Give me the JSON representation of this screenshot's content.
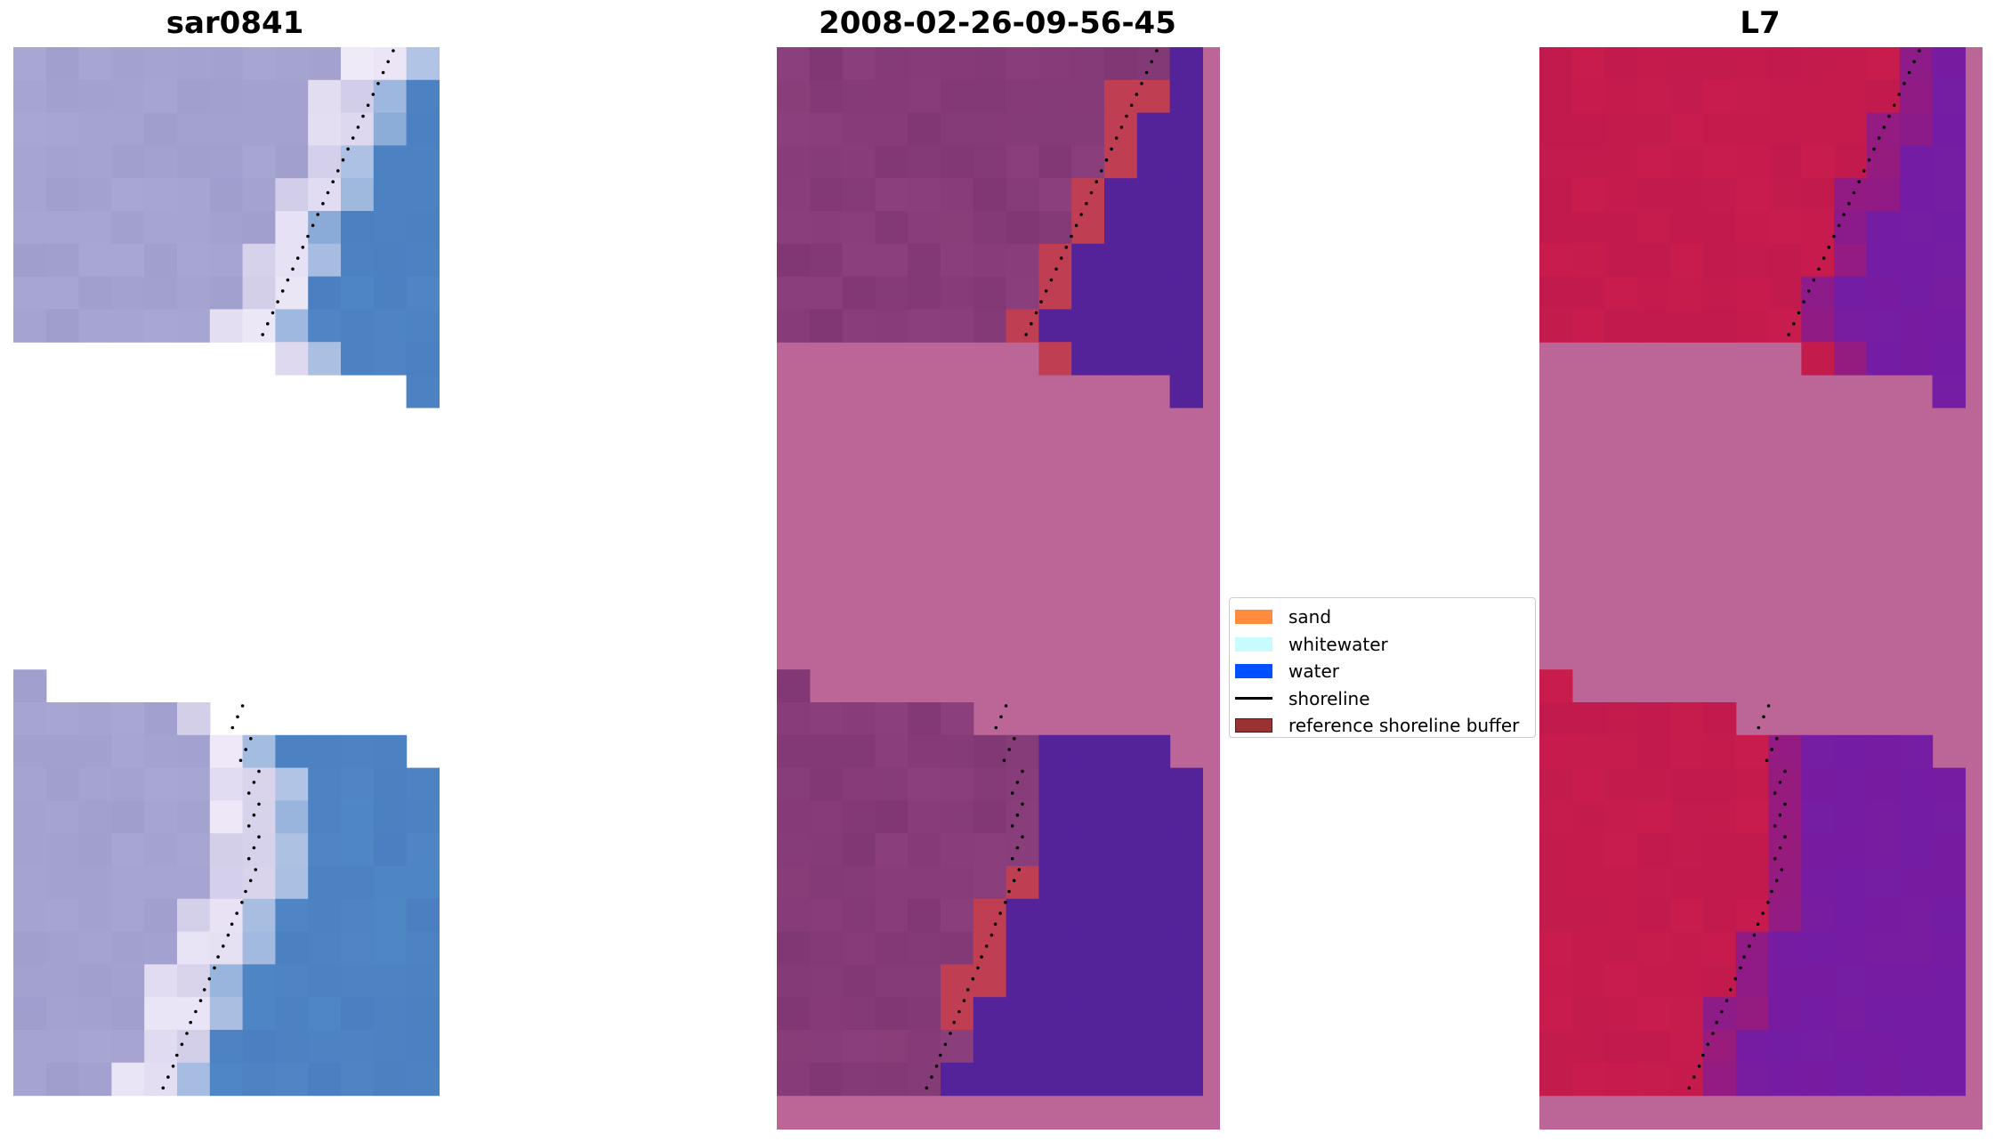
{
  "panels": [
    {
      "title": "sar0841"
    },
    {
      "title": "2008-02-26-09-56-45"
    },
    {
      "title": "L7"
    }
  ],
  "legend": {
    "items": [
      {
        "label": "sand",
        "kind": "patch",
        "color": "#ff8c3c"
      },
      {
        "label": "whitewater",
        "kind": "patch",
        "color": "#c8fbfb"
      },
      {
        "label": "water",
        "kind": "patch",
        "color": "#0050ff"
      },
      {
        "label": "shoreline",
        "kind": "line",
        "color": "#000000"
      },
      {
        "label": "reference shoreline buffer",
        "kind": "patch",
        "color": "#993333"
      }
    ]
  },
  "colors": {
    "rgb_land": "#a8a6d2",
    "rgb_sea": "#4f86c4",
    "rgb_surf": "#f4eefb",
    "nodata_mask": "#bb6696",
    "class_land": "#8b3f7c",
    "class_water": "#54239a",
    "class_buffer": "#c03e52",
    "mndwi_land": "#c21a4d",
    "mndwi_water": "#781ca0",
    "shoreline": "#000000"
  }
}
